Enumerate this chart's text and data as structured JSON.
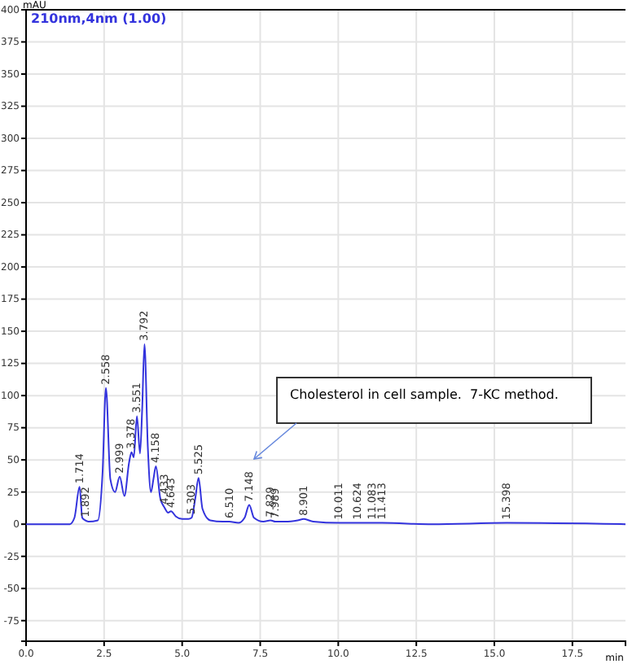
{
  "chart_data": {
    "type": "line",
    "ylabel": "mAU",
    "xlabel": "min",
    "xlim": [
      0,
      19.2
    ],
    "xticks": [
      {
        "value": 0,
        "label": "0.0"
      },
      {
        "value": 2.5,
        "label": "2.5"
      },
      {
        "value": 5,
        "label": "5.0"
      },
      {
        "value": 7.5,
        "label": "7.5"
      },
      {
        "value": 10,
        "label": "10.0"
      },
      {
        "value": 12.5,
        "label": "12.5"
      },
      {
        "value": 15,
        "label": "15.0"
      },
      {
        "value": 17.5,
        "label": "17.5"
      }
    ],
    "ylim": [
      -91,
      400
    ],
    "yticks": [
      -75,
      -50,
      -25,
      0,
      25,
      50,
      75,
      100,
      125,
      150,
      175,
      200,
      225,
      250,
      275,
      300,
      325,
      350,
      375,
      400
    ],
    "grid": true,
    "legend": "top left",
    "marker": "none",
    "line_style": "solid",
    "series": [
      {
        "name": "210nm,4nm (1.00)",
        "color": "#3333dd",
        "x": [
          0,
          1.4,
          1.55,
          1.714,
          1.8,
          1.892,
          2.0,
          2.3,
          2.45,
          2.558,
          2.7,
          2.85,
          2.999,
          3.15,
          3.3,
          3.378,
          3.45,
          3.551,
          3.65,
          3.72,
          3.792,
          3.9,
          4.0,
          4.08,
          4.158,
          4.3,
          4.433,
          4.55,
          4.643,
          4.8,
          5.0,
          5.2,
          5.303,
          5.42,
          5.525,
          5.65,
          5.9,
          6.3,
          6.51,
          6.8,
          7.0,
          7.148,
          7.3,
          7.6,
          7.829,
          7.989,
          8.3,
          8.7,
          8.901,
          9.2,
          10.011,
          10.624,
          11.083,
          11.413,
          13,
          15.398,
          19.2
        ],
        "values": [
          0,
          0,
          5,
          29,
          5,
          3,
          2,
          3,
          40,
          106,
          35,
          25,
          37,
          22,
          48,
          56,
          52,
          84,
          55,
          90,
          140,
          60,
          25,
          35,
          45,
          20,
          13,
          9,
          10,
          6,
          4,
          4,
          5,
          20,
          36,
          12,
          3,
          2,
          2,
          1,
          5,
          15,
          5,
          2,
          3,
          2,
          2,
          3,
          4,
          2,
          1,
          1,
          1,
          1,
          0,
          1,
          0
        ]
      }
    ],
    "annotations": [
      {
        "text": "1.714",
        "x": 1.714,
        "y": 29
      },
      {
        "text": "1.892",
        "x": 1.892,
        "y": 3
      },
      {
        "text": "2.558",
        "x": 2.558,
        "y": 106
      },
      {
        "text": "2.999",
        "x": 2.999,
        "y": 37
      },
      {
        "text": "3.378",
        "x": 3.378,
        "y": 56
      },
      {
        "text": "3.551",
        "x": 3.551,
        "y": 84
      },
      {
        "text": "3.792",
        "x": 3.792,
        "y": 140
      },
      {
        "text": "4.158",
        "x": 4.158,
        "y": 45
      },
      {
        "text": "4.433",
        "x": 4.433,
        "y": 13
      },
      {
        "text": "4.643",
        "x": 4.643,
        "y": 10
      },
      {
        "text": "5.303",
        "x": 5.303,
        "y": 5
      },
      {
        "text": "5.525",
        "x": 5.525,
        "y": 36
      },
      {
        "text": "6.510",
        "x": 6.51,
        "y": 2
      },
      {
        "text": "7.148",
        "x": 7.148,
        "y": 15
      },
      {
        "text": "7.829",
        "x": 7.829,
        "y": 3
      },
      {
        "text": "7.989",
        "x": 7.989,
        "y": 2
      },
      {
        "text": "8.901",
        "x": 8.901,
        "y": 4
      },
      {
        "text": "10.011",
        "x": 10.011,
        "y": 1
      },
      {
        "text": "10.624",
        "x": 10.624,
        "y": 1
      },
      {
        "text": "11.083",
        "x": 11.083,
        "y": 1
      },
      {
        "text": "11.413",
        "x": 11.413,
        "y": 1
      },
      {
        "text": "15.398",
        "x": 15.398,
        "y": 1
      },
      "Cholesterol in cell sample.  7-KC method."
    ]
  }
}
